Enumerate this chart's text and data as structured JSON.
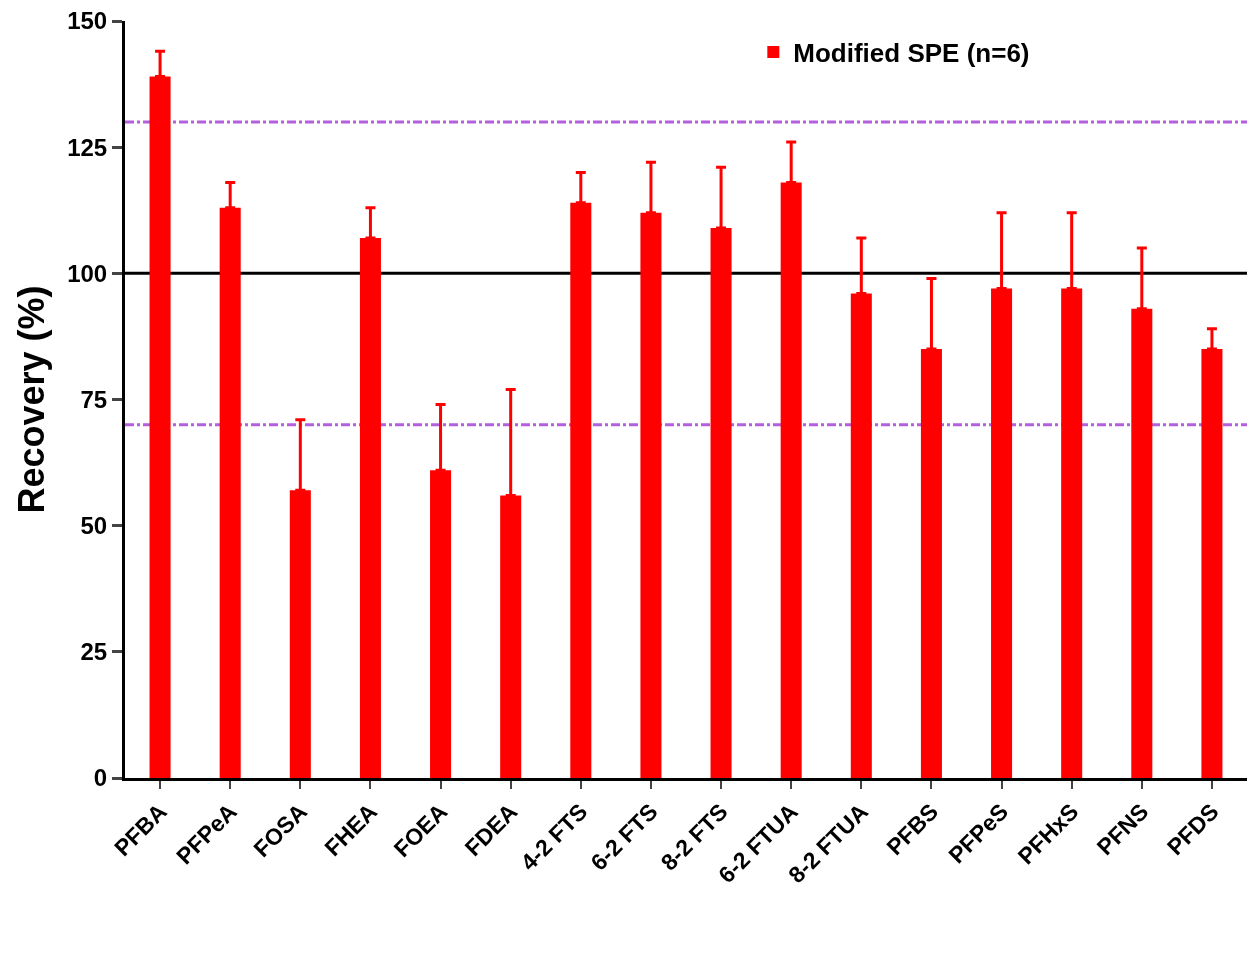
{
  "chart_data": {
    "type": "bar",
    "ylabel": "Recovery (%)",
    "categories": [
      "PFBA",
      "PFPeA",
      "FOSA",
      "FHEA",
      "FOEA",
      "FDEA",
      "4-2 FTS",
      "6-2 FTS",
      "8-2 FTS",
      "6-2 FTUA",
      "8-2 FTUA",
      "PFBS",
      "PFPeS",
      "PFHxS",
      "PFNS",
      "PFDS"
    ],
    "series": [
      {
        "name": "Modified SPE (n=6)",
        "color": "#ff0000",
        "values": [
          139,
          113,
          57,
          107,
          61,
          56,
          114,
          112,
          109,
          118,
          96,
          85,
          97,
          97,
          93,
          85
        ],
        "errors": [
          [
            139,
            144
          ],
          [
            113,
            118
          ],
          [
            57,
            71
          ],
          [
            107,
            113
          ],
          [
            61,
            74
          ],
          [
            56,
            77
          ],
          [
            114,
            120
          ],
          [
            112,
            122
          ],
          [
            109,
            121
          ],
          [
            118,
            126
          ],
          [
            96,
            107
          ],
          [
            85,
            99
          ],
          [
            97,
            112
          ],
          [
            97,
            112
          ],
          [
            93,
            105
          ],
          [
            85,
            89
          ]
        ]
      }
    ],
    "ylim": [
      0,
      150
    ],
    "yticks": [
      0,
      25,
      50,
      75,
      100,
      125,
      150
    ],
    "ref_lines": [
      {
        "axis": "y",
        "value": 130,
        "color": "#b45ee0",
        "line_style": "dashdot"
      },
      {
        "axis": "y",
        "value": 100,
        "color": "#000000",
        "line_style": "solid"
      },
      {
        "axis": "y",
        "value": 70,
        "color": "#b45ee0",
        "line_style": "dashdot"
      }
    ],
    "grid": false,
    "legend": "top right"
  }
}
